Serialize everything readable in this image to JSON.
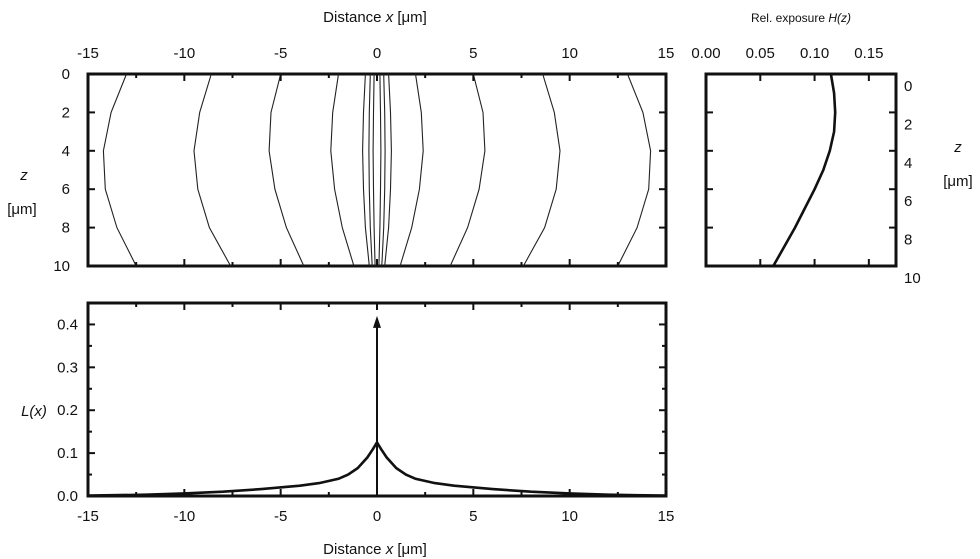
{
  "figure": {
    "top_axis_title": "Distance x [μm]",
    "top_axis_title_main": "Distance ",
    "top_axis_title_var": "x",
    "top_axis_title_unit": " [μm]",
    "bottom_axis_title_main": "Distance ",
    "bottom_axis_title_var": "x",
    "bottom_axis_title_unit": " [μm]",
    "left_z_label": "z",
    "left_z_unit": "[μm]",
    "right_z_label": "z",
    "right_z_unit": "[μm]",
    "exposure_title_main": "Rel. exposure ",
    "exposure_title_var": "H(z)",
    "lx_label": "L(x)"
  },
  "chart_data": [
    {
      "type": "contour",
      "xlabel": "Distance x [μm]",
      "ylabel": "z [μm]",
      "xlim": [
        -15,
        15
      ],
      "ylim": [
        0,
        10
      ],
      "y_inverted": true,
      "x_ticks": [
        "-15",
        "-10",
        "-5",
        "0",
        "5",
        "10",
        "15"
      ],
      "y_ticks": [
        "0",
        "2",
        "4",
        "6",
        "8",
        "10"
      ],
      "contours": [
        {
          "points": [
            [
              -13,
              0
            ],
            [
              -13.8,
              2
            ],
            [
              -14.2,
              4
            ],
            [
              -14.1,
              6
            ],
            [
              -13.5,
              8
            ],
            [
              -12.5,
              10
            ]
          ]
        },
        {
          "points": [
            [
              13,
              0
            ],
            [
              13.8,
              2
            ],
            [
              14.2,
              4
            ],
            [
              14.1,
              6
            ],
            [
              13.5,
              8
            ],
            [
              12.5,
              10
            ]
          ]
        },
        {
          "points": [
            [
              -8.6,
              0
            ],
            [
              -9.2,
              2
            ],
            [
              -9.5,
              4
            ],
            [
              -9.3,
              6
            ],
            [
              -8.7,
              8
            ],
            [
              -7.6,
              10
            ]
          ]
        },
        {
          "points": [
            [
              8.6,
              0
            ],
            [
              9.2,
              2
            ],
            [
              9.5,
              4
            ],
            [
              9.3,
              6
            ],
            [
              8.7,
              8
            ],
            [
              7.6,
              10
            ]
          ]
        },
        {
          "points": [
            [
              -5,
              0
            ],
            [
              -5.5,
              2
            ],
            [
              -5.6,
              4
            ],
            [
              -5.3,
              6
            ],
            [
              -4.7,
              8
            ],
            [
              -3.8,
              10
            ]
          ]
        },
        {
          "points": [
            [
              5,
              0
            ],
            [
              5.5,
              2
            ],
            [
              5.6,
              4
            ],
            [
              5.3,
              6
            ],
            [
              4.7,
              8
            ],
            [
              3.8,
              10
            ]
          ]
        },
        {
          "points": [
            [
              -2,
              0
            ],
            [
              -2.3,
              2
            ],
            [
              -2.4,
              4
            ],
            [
              -2.2,
              6
            ],
            [
              -1.8,
              8
            ],
            [
              -1.2,
              10
            ]
          ]
        },
        {
          "points": [
            [
              2,
              0
            ],
            [
              2.3,
              2
            ],
            [
              2.4,
              4
            ],
            [
              2.2,
              6
            ],
            [
              1.8,
              8
            ],
            [
              1.2,
              10
            ]
          ]
        },
        {
          "points": [
            [
              -0.6,
              0
            ],
            [
              -0.7,
              2
            ],
            [
              -0.75,
              4
            ],
            [
              -0.7,
              6
            ],
            [
              -0.6,
              8
            ],
            [
              -0.4,
              10
            ]
          ]
        },
        {
          "points": [
            [
              0.6,
              0
            ],
            [
              0.7,
              2
            ],
            [
              0.75,
              4
            ],
            [
              0.7,
              6
            ],
            [
              0.6,
              8
            ],
            [
              0.4,
              10
            ]
          ]
        },
        {
          "points": [
            [
              -0.35,
              0
            ],
            [
              -0.4,
              2
            ],
            [
              -0.42,
              4
            ],
            [
              -0.4,
              6
            ],
            [
              -0.35,
              8
            ],
            [
              -0.25,
              10
            ]
          ]
        },
        {
          "points": [
            [
              0.35,
              0
            ],
            [
              0.4,
              2
            ],
            [
              0.42,
              4
            ],
            [
              0.4,
              6
            ],
            [
              0.35,
              8
            ],
            [
              0.25,
              10
            ]
          ]
        },
        {
          "points": [
            [
              -0.15,
              0
            ],
            [
              -0.18,
              2
            ],
            [
              -0.2,
              4
            ],
            [
              -0.18,
              6
            ],
            [
              -0.15,
              8
            ],
            [
              -0.1,
              10
            ]
          ]
        },
        {
          "points": [
            [
              0.15,
              0
            ],
            [
              0.18,
              2
            ],
            [
              0.2,
              4
            ],
            [
              0.18,
              6
            ],
            [
              0.15,
              8
            ],
            [
              0.1,
              10
            ]
          ]
        }
      ]
    },
    {
      "type": "line",
      "title": "Rel. exposure H(z)",
      "xlabel": "Rel. exposure H(z)",
      "ylabel": "z [μm]",
      "xlim": [
        0,
        0.175
      ],
      "ylim": [
        0,
        10
      ],
      "y_inverted": true,
      "x_ticks": [
        "0.00",
        "0.05",
        "0.10",
        "0.15"
      ],
      "y_ticks": [
        "0",
        "2",
        "4",
        "6",
        "8",
        "10"
      ],
      "series": [
        {
          "x": [
            0.115,
            0.118,
            0.119,
            0.118,
            0.114,
            0.108,
            0.1,
            0.091,
            0.082,
            0.072,
            0.062
          ],
          "z": [
            0,
            1,
            2,
            3,
            4,
            5,
            6,
            7,
            8,
            9,
            10
          ]
        }
      ]
    },
    {
      "type": "line",
      "xlabel": "Distance x [μm]",
      "ylabel": "L(x)",
      "xlim": [
        -15,
        15
      ],
      "ylim": [
        0,
        0.45
      ],
      "x_ticks": [
        "-15",
        "-10",
        "-5",
        "0",
        "5",
        "10",
        "15"
      ],
      "y_ticks": [
        "0.0",
        "0.1",
        "0.2",
        "0.3",
        "0.4"
      ],
      "series": [
        {
          "x": [
            -15,
            -12,
            -10,
            -8,
            -6,
            -4,
            -3,
            -2,
            -1.5,
            -1,
            -0.5,
            -0.2,
            0,
            0.2,
            0.5,
            1,
            1.5,
            2,
            3,
            4,
            6,
            8,
            10,
            12,
            15
          ],
          "y": [
            0.001,
            0.003,
            0.006,
            0.01,
            0.016,
            0.024,
            0.03,
            0.04,
            0.05,
            0.065,
            0.09,
            0.11,
            0.125,
            0.11,
            0.09,
            0.065,
            0.05,
            0.04,
            0.03,
            0.024,
            0.016,
            0.01,
            0.006,
            0.003,
            0.001
          ]
        }
      ],
      "delta_spike": {
        "x": 0,
        "y": 0.42
      }
    }
  ]
}
